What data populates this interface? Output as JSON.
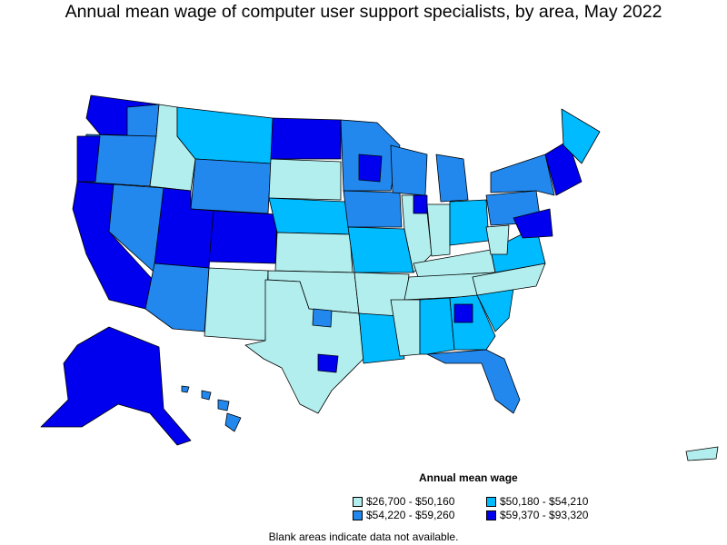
{
  "title": "Annual mean wage of computer user support specialists, by area, May 2022",
  "legend": {
    "title": "Annual mean wage",
    "items": [
      {
        "label": "$26,700 - $50,160",
        "color": "#b3eeee"
      },
      {
        "label": "$50,180 - $54,210",
        "color": "#00bbff"
      },
      {
        "label": "$54,220 - $59,260",
        "color": "#2288ee"
      },
      {
        "label": "$59,370 - $93,320",
        "color": "#0000ee"
      }
    ]
  },
  "footnote": "Blank areas indicate data not available."
}
